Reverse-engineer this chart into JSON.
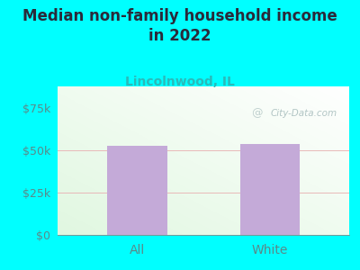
{
  "title": "Median non-family household income\nin 2022",
  "subtitle": "Lincolnwood, IL",
  "categories": [
    "All",
    "White"
  ],
  "values": [
    52500,
    53500
  ],
  "bar_color": "#c4aad8",
  "bg_color": "#00FFFF",
  "ylabel_color": "#5a8a8a",
  "title_color": "#2a2a3a",
  "subtitle_color": "#2ababa",
  "ylim": [
    0,
    87500
  ],
  "yticks": [
    0,
    25000,
    50000,
    75000
  ],
  "ytick_labels": [
    "$0",
    "$25k",
    "$50k",
    "$75k"
  ],
  "watermark": "City-Data.com",
  "watermark_color": "#aabfbf",
  "gridline_color": "#e8b8b8",
  "title_fontsize": 12,
  "subtitle_fontsize": 10,
  "tick_fontsize": 9,
  "bar_width": 0.45,
  "xlim": [
    -0.6,
    1.6
  ]
}
